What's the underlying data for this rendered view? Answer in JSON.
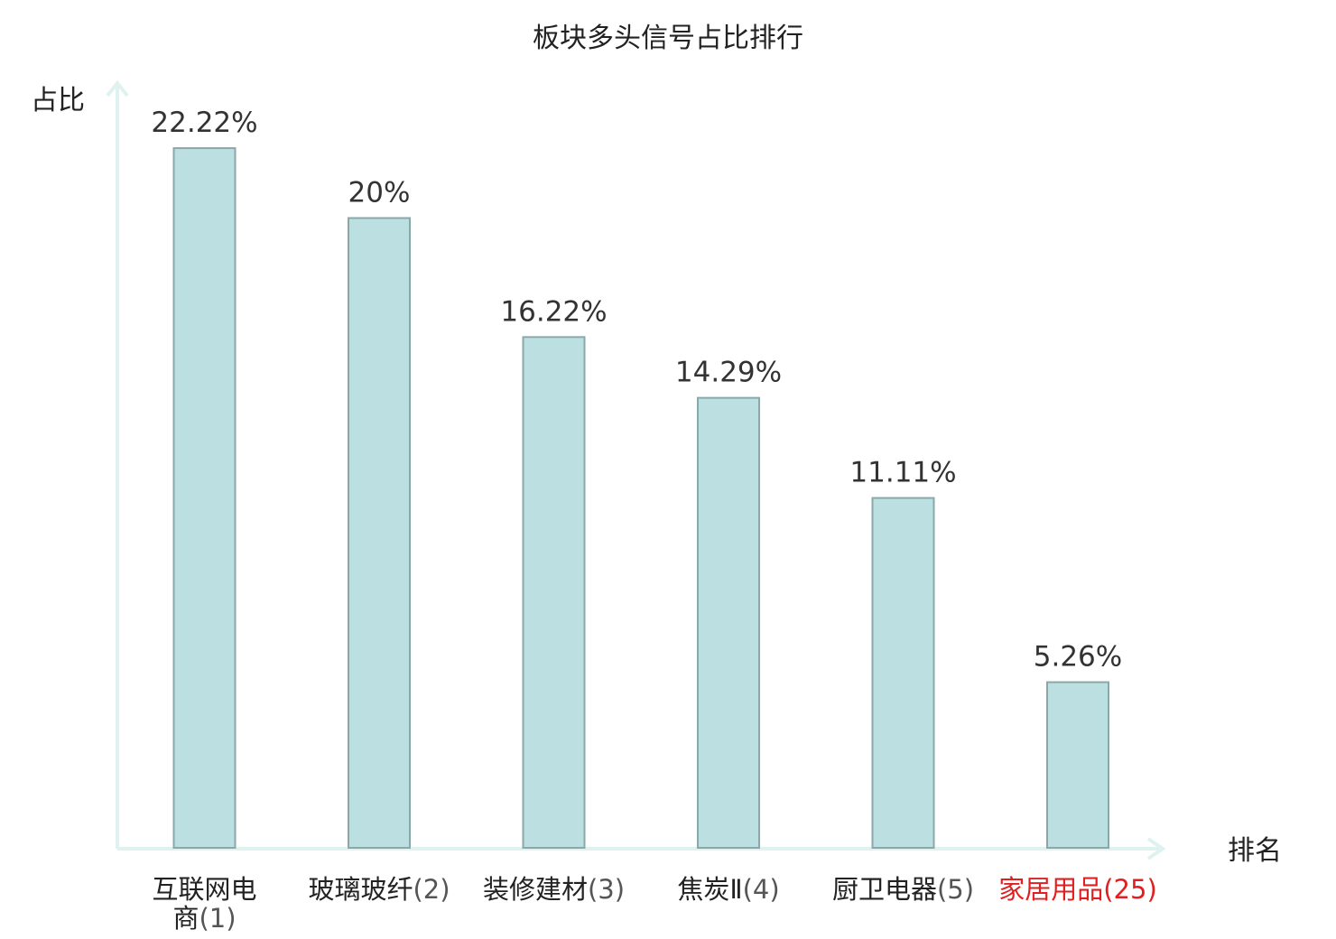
{
  "chart_data": {
    "type": "bar",
    "title": "板块多头信号占比排行",
    "ylabel": "占比",
    "xlabel": "排名",
    "ylim": [
      0,
      24
    ],
    "grid": false,
    "legend": "none",
    "categories": [
      {
        "name": "互联网电商",
        "rank": "(1)",
        "highlight": false
      },
      {
        "name": "玻璃玻纤",
        "rank": "(2)",
        "highlight": false
      },
      {
        "name": "装修建材",
        "rank": "(3)",
        "highlight": false
      },
      {
        "name": "焦炭Ⅱ",
        "rank": "(4)",
        "highlight": false
      },
      {
        "name": "厨卫电器",
        "rank": "(5)",
        "highlight": false
      },
      {
        "name": "家居用品",
        "rank": "(25)",
        "highlight": true
      }
    ],
    "values": [
      22.22,
      20,
      16.22,
      14.29,
      11.11,
      5.26
    ],
    "value_labels": [
      "22.22%",
      "20%",
      "16.22%",
      "14.29%",
      "11.11%",
      "5.26%"
    ],
    "colors": {
      "bar_fill": "#bce0e2",
      "bar_stroke": "#8aa8a9",
      "axis": "#dff2ef",
      "highlight": "#e02020"
    }
  }
}
